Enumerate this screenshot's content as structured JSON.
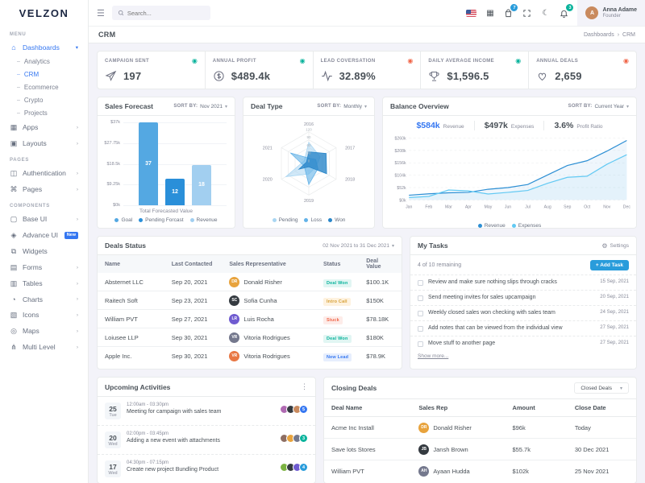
{
  "ui": {
    "chevron_down": "▾",
    "chevron_right": "›",
    "crumb_sep": "›",
    "kebab": "⋮",
    "gear": "⚙",
    "moon": "☾",
    "hamburger": "☰",
    "grid": "▦",
    "trend_dot": "◉",
    "dash": "–"
  },
  "brand": {
    "logo": "VELZON"
  },
  "header": {
    "search_placeholder": "Search...",
    "cart_badge": "7",
    "cart_badge_color": "#299cdb",
    "bell_badge": "3",
    "bell_badge_color": "#0ab39c",
    "user": {
      "name": "Anna Adame",
      "role": "Founder",
      "initials": "A"
    }
  },
  "page": {
    "title": "CRM",
    "crumb_root": "Dashboards",
    "crumb_current": "CRM"
  },
  "sidebar": {
    "sections": [
      {
        "label": "MENU",
        "items": [
          {
            "label": "Dashboards",
            "icon": "dashboards-icon",
            "glyph": "⌂",
            "active": true,
            "chevron": "▾",
            "children": [
              {
                "label": "Analytics"
              },
              {
                "label": "CRM",
                "active": true
              },
              {
                "label": "Ecommerce"
              },
              {
                "label": "Crypto"
              },
              {
                "label": "Projects"
              }
            ]
          },
          {
            "label": "Apps",
            "icon": "apps-icon",
            "glyph": "▦",
            "chevron": "›"
          },
          {
            "label": "Layouts",
            "icon": "layouts-icon",
            "glyph": "▣",
            "chevron": "›"
          }
        ]
      },
      {
        "label": "PAGES",
        "items": [
          {
            "label": "Authentication",
            "icon": "authentication-icon",
            "glyph": "◫",
            "chevron": "›"
          },
          {
            "label": "Pages",
            "icon": "pages-icon",
            "glyph": "⌘",
            "chevron": "›"
          }
        ]
      },
      {
        "label": "COMPONENTS",
        "items": [
          {
            "label": "Base UI",
            "icon": "base-ui-icon",
            "glyph": "▢",
            "chevron": "›"
          },
          {
            "label": "Advance UI",
            "icon": "advance-ui-icon",
            "glyph": "◈",
            "badge": "New"
          },
          {
            "label": "Widgets",
            "icon": "widgets-icon",
            "glyph": "⧉"
          },
          {
            "label": "Forms",
            "icon": "forms-icon",
            "glyph": "▤",
            "chevron": "›"
          },
          {
            "label": "Tables",
            "icon": "tables-icon",
            "glyph": "▥",
            "chevron": "›"
          },
          {
            "label": "Charts",
            "icon": "charts-icon",
            "glyph": "◔",
            "chevron": "›"
          },
          {
            "label": "Icons",
            "icon": "icons-icon",
            "glyph": "▧",
            "chevron": "›"
          },
          {
            "label": "Maps",
            "icon": "maps-icon",
            "glyph": "◎",
            "chevron": "›"
          },
          {
            "label": "Multi Level",
            "icon": "multi-level-icon",
            "glyph": "⋔",
            "chevron": "›"
          }
        ]
      }
    ]
  },
  "stats": [
    {
      "label": "CAMPAIGN SENT",
      "value": "197",
      "icon": "paper-plane",
      "trend": "up"
    },
    {
      "label": "ANNUAL PROFIT",
      "value": "$489.4k",
      "icon": "dollar",
      "trend": "up"
    },
    {
      "label": "LEAD COVERSATION",
      "value": "32.89%",
      "icon": "activity",
      "trend": "down"
    },
    {
      "label": "DAILY AVERAGE INCOME",
      "value": "$1,596.5",
      "icon": "trophy",
      "trend": "up"
    },
    {
      "label": "ANNUAL DEALS",
      "value": "2,659",
      "icon": "heart",
      "trend": "down"
    }
  ],
  "chart_data": [
    {
      "id": "sales_forecast",
      "type": "bar",
      "title": "Sales Forecast",
      "sort_prefix": "SORT BY:",
      "sort_value": "Nov 2021",
      "categories": [
        "Goal",
        "Pending Forcast",
        "Revenue"
      ],
      "values": [
        37,
        12,
        18
      ],
      "ymax": 37,
      "yticks": [
        "$0k",
        "$9.25k",
        "$18.5k",
        "$27.75k",
        "$37k"
      ],
      "xlabel": "Total Forecasted Value",
      "colors": [
        "#54a8e2",
        "#2a8fd9",
        "#a2cff0"
      ]
    },
    {
      "id": "deal_type",
      "type": "radar",
      "title": "Deal Type",
      "sort_prefix": "SORT BY:",
      "sort_value": "Monthly",
      "categories": [
        "2016",
        "2017",
        "2018",
        "2019",
        "2020",
        "2021"
      ],
      "rmax": 120,
      "ticks": [
        0,
        30,
        60,
        90,
        120
      ],
      "series": [
        {
          "name": "Pending",
          "values": [
            80,
            50,
            30,
            40,
            100,
            20
          ],
          "color": "#a9d6f2",
          "opacity": 0.55
        },
        {
          "name": "Loss",
          "values": [
            20,
            30,
            40,
            80,
            20,
            80
          ],
          "color": "#62b2e8",
          "opacity": 0.6
        },
        {
          "name": "Won",
          "values": [
            44,
            76,
            78,
            13,
            43,
            10
          ],
          "color": "#2986c9",
          "opacity": 0.8
        }
      ]
    },
    {
      "id": "balance_overview",
      "type": "area",
      "title": "Balance Overview",
      "sort_prefix": "SORT BY:",
      "sort_value": "Current Year",
      "x": [
        "Jan",
        "Feb",
        "Mar",
        "Apr",
        "May",
        "Jun",
        "Jul",
        "Aug",
        "Sep",
        "Oct",
        "Nov",
        "Dec"
      ],
      "ylim": [
        0,
        260
      ],
      "yticks": [
        "$0k",
        "$52k",
        "$104k",
        "$156k",
        "$208k",
        "$260k"
      ],
      "series": [
        {
          "name": "Revenue",
          "values": [
            20,
            26,
            30,
            32,
            45,
            52,
            65,
            105,
            145,
            165,
            205,
            250
          ],
          "color": "#2d8fd4"
        },
        {
          "name": "Expenses",
          "values": [
            10,
            15,
            42,
            38,
            25,
            32,
            40,
            70,
            95,
            100,
            150,
            190
          ],
          "color": "#62c9f3"
        }
      ],
      "stats": [
        {
          "value": "$584k",
          "label": "Revenue",
          "accent": true
        },
        {
          "value": "$497k",
          "label": "Expenses"
        },
        {
          "value": "3.6%",
          "label": "Profit Ratio"
        }
      ]
    }
  ],
  "deals_status": {
    "title": "Deals Status",
    "date_range": "02 Nov 2021 to 31 Dec 2021",
    "columns": [
      "Name",
      "Last Contacted",
      "Sales Representative",
      "Status",
      "Deal Value"
    ],
    "col_widths": [
      "22%",
      "19%",
      "31%",
      "14%",
      "14%"
    ],
    "rows": [
      {
        "name": "Absternet LLC",
        "date": "Sep 20, 2021",
        "rep": {
          "name": "Donald Risher",
          "initials": "DR",
          "color": "#e8a33d"
        },
        "status": {
          "label": "Deal Won",
          "color": "success"
        },
        "value": "$100.1K"
      },
      {
        "name": "Raitech Soft",
        "date": "Sep 23, 2021",
        "rep": {
          "name": "Sofia Cunha",
          "initials": "SC",
          "color": "#343a40"
        },
        "status": {
          "label": "Intro Call",
          "color": "warning"
        },
        "value": "$150K"
      },
      {
        "name": "William PVT",
        "date": "Sep 27, 2021",
        "rep": {
          "name": "Luis Rocha",
          "initials": "LR",
          "color": "#6f5bd0"
        },
        "status": {
          "label": "Stuck",
          "color": "danger"
        },
        "value": "$78.18K"
      },
      {
        "name": "Loiusee LLP",
        "date": "Sep 30, 2021",
        "rep": {
          "name": "Vitoria Rodrigues",
          "initials": "VR",
          "color": "#74788d"
        },
        "status": {
          "label": "Deal Won",
          "color": "success"
        },
        "value": "$180K"
      },
      {
        "name": "Apple Inc.",
        "date": "Sep 30, 2021",
        "rep": {
          "name": "Vitoria Rodrigues",
          "initials": "VR",
          "color": "#e87744"
        },
        "status": {
          "label": "New Lead",
          "color": "secondary"
        },
        "value": "$78.9K"
      }
    ]
  },
  "my_tasks": {
    "title": "My Tasks",
    "settings_label": "Settings",
    "remaining": "4 of 10 remaining",
    "add_task_label": "+ Add Task",
    "show_more": "Show more...",
    "tasks": [
      {
        "text": "Review and make sure nothing slips through cracks",
        "date": "15 Sep, 2021"
      },
      {
        "text": "Send meeting invites for sales upcampaign",
        "date": "20 Sep, 2021"
      },
      {
        "text": "Weekly closed sales won checking with sales team",
        "date": "24 Sep, 2021"
      },
      {
        "text": "Add notes that can be viewed from the individual view",
        "date": "27 Sep, 2021"
      },
      {
        "text": "Move stuff to another page",
        "date": "27 Sep, 2021"
      }
    ]
  },
  "upcoming_activities": {
    "title": "Upcoming Activities",
    "items": [
      {
        "day": "25",
        "dow": "Tue",
        "time": "12:00am - 03:30pm",
        "title": "Meeting for campaign with sales team",
        "avatars": [
          "#b06ab3",
          "#343a40",
          "#c98a5e"
        ],
        "count": "5",
        "badge_color": "#3577f1"
      },
      {
        "day": "20",
        "dow": "Wed",
        "time": "02:00pm - 03:45pm",
        "title": "Adding a new event with attachments",
        "avatars": [
          "#8d6e63",
          "#e8a33d",
          "#74788d"
        ],
        "count": "3",
        "badge_color": "#0ab39c"
      },
      {
        "day": "17",
        "dow": "Wed",
        "time": "04:30pm - 07:15pm",
        "title": "Create new project Bundling Product",
        "avatars": [
          "#7cb342",
          "#343a40",
          "#6f5bd0"
        ],
        "count": "4",
        "badge_color": "#299cdb"
      }
    ]
  },
  "closing_deals": {
    "title": "Closing Deals",
    "filter_label": "Closed Deals",
    "columns": [
      "Deal Name",
      "Sales Rep",
      "Amount",
      "Close Date"
    ],
    "col_widths": [
      "28%",
      "30%",
      "20%",
      "22%"
    ],
    "rows": [
      {
        "deal": "Acme Inc Install",
        "rep": {
          "name": "Donald Risher",
          "initials": "DR",
          "color": "#e8a33d"
        },
        "amount": "$96k",
        "date": "Today"
      },
      {
        "deal": "Save lots Stores",
        "rep": {
          "name": "Jansh Brown",
          "initials": "JB",
          "color": "#343a40"
        },
        "amount": "$55.7k",
        "date": "30 Dec 2021"
      },
      {
        "deal": "William PVT",
        "rep": {
          "name": "Ayaan Hudda",
          "initials": "AH",
          "color": "#74788d"
        },
        "amount": "$102k",
        "date": "25 Nov 2021"
      }
    ]
  }
}
